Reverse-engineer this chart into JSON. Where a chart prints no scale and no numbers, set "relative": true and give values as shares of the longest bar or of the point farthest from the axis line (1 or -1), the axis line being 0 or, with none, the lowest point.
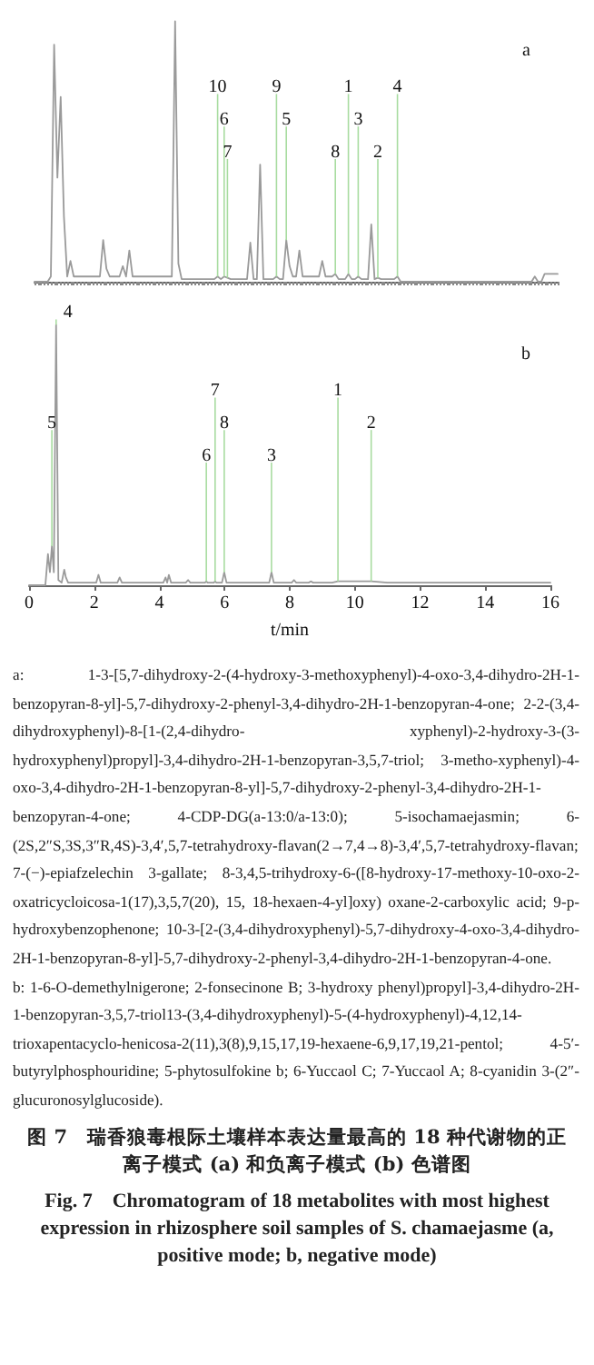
{
  "chart_data": [
    {
      "type": "line",
      "title": "a",
      "relative": true,
      "tick_labels": false,
      "line_style": "solid",
      "categories": [
        null,
        null,
        null,
        null,
        null,
        null,
        null,
        null,
        null,
        null,
        null,
        null,
        null,
        null,
        null,
        null,
        null,
        null,
        null,
        null,
        null,
        null,
        null,
        null,
        null,
        null,
        null,
        null,
        null,
        null,
        null,
        null,
        null,
        null,
        null,
        null,
        null,
        null,
        null,
        null,
        null,
        null,
        null,
        null,
        null,
        null,
        null,
        null,
        null,
        null,
        null,
        null,
        null,
        null,
        null,
        null,
        null,
        null,
        null,
        null,
        null,
        null,
        null,
        null,
        null,
        null,
        null,
        null,
        null,
        null,
        null,
        null,
        null,
        null,
        null,
        null,
        null,
        null,
        null,
        null,
        null,
        null,
        null,
        null,
        null,
        null,
        null,
        null,
        null,
        null,
        null,
        null,
        null,
        null,
        null,
        null,
        null,
        null,
        null,
        null,
        null,
        null,
        null,
        null,
        null,
        null,
        null,
        null,
        null,
        null,
        null,
        null,
        null,
        null,
        null,
        null,
        null,
        null,
        null,
        null,
        null,
        null,
        null,
        null,
        null,
        null,
        null,
        null,
        null,
        null,
        null,
        null,
        null,
        null,
        null,
        null,
        null,
        null,
        null,
        null,
        null,
        null,
        null,
        null,
        null,
        null,
        null,
        null,
        null,
        null,
        null,
        null,
        null,
        null,
        null,
        null,
        null,
        null,
        null,
        null,
        null
      ],
      "series": [
        {
          "color": "#9a9a9a",
          "values": [
            0,
            0,
            0,
            0,
            0,
            0.02,
            0.91,
            0.4,
            0.71,
            0.25,
            0.02,
            0.08,
            0.02,
            0.02,
            0.02,
            0.02,
            0.02,
            0.02,
            0.02,
            0.02,
            0.02,
            0.16,
            0.05,
            0.02,
            0.02,
            0.02,
            0.02,
            0.06,
            0.02,
            0.12,
            0.02,
            0.02,
            0.02,
            0.02,
            0.02,
            0.02,
            0.02,
            0.02,
            0.02,
            0.02,
            0.02,
            0.02,
            0.02,
            1.0,
            0.07,
            0.01,
            0.01,
            0.01,
            0.01,
            0.01,
            0.01,
            0.01,
            0.01,
            0.01,
            0.01,
            0.01,
            0.02,
            0.01,
            0.02,
            0.015,
            0.01,
            0.01,
            0.01,
            0.01,
            0.01,
            0.01,
            0.15,
            0.01,
            0.01,
            0.45,
            0.01,
            0.01,
            0.01,
            0.01,
            0.02,
            0.01,
            0.01,
            0.16,
            0.06,
            0.02,
            0.02,
            0.12,
            0.02,
            0.02,
            0.02,
            0.02,
            0.02,
            0.02,
            0.08,
            0.02,
            0.02,
            0.02,
            0.03,
            0.01,
            0.01,
            0.01,
            0.03,
            0.01,
            0.01,
            0.02,
            0.01,
            0.01,
            0.01,
            0.22,
            0.01,
            0.015,
            0.01,
            0.01,
            0.01,
            0.01,
            0.01,
            0.02,
            0,
            0,
            0,
            0,
            0,
            0,
            0,
            0,
            0,
            0,
            0,
            0,
            0,
            0,
            0,
            0,
            0,
            0,
            0,
            0,
            0,
            0,
            0,
            0,
            0,
            0,
            0,
            0,
            0,
            0,
            0,
            0,
            0,
            0,
            0,
            0,
            0,
            0,
            0,
            0,
            0,
            0.02,
            0,
            0,
            0.03,
            0.03,
            0.03,
            0.03,
            0.03
          ]
        }
      ],
      "annotations": [
        "10",
        "6",
        "7",
        "9",
        "5",
        "8",
        "1",
        "3",
        "2",
        "4"
      ]
    },
    {
      "type": "line",
      "title": "b",
      "relative": true,
      "tick_labels": "x",
      "line_style": "solid",
      "xlabel": "t/min",
      "xlim": [
        0,
        16
      ],
      "xticks": [
        0,
        2,
        4,
        6,
        8,
        10,
        12,
        14,
        16
      ],
      "series": [
        {
          "color": "#9a9a9a",
          "x": [
            0,
            0.5,
            0.58,
            0.64,
            0.7,
            0.76,
            0.83,
            0.9,
            1.0,
            1.08,
            1.13,
            1.2,
            2.06,
            2.13,
            2.2,
            2.71,
            2.78,
            2.85,
            4.12,
            4.19,
            4.24,
            4.29,
            4.36,
            4.81,
            4.88,
            4.95,
            5.4,
            5.44,
            5.48,
            5.67,
            5.71,
            5.75,
            5.92,
            5.99,
            6.06,
            7.37,
            7.44,
            7.51,
            8.06,
            8.13,
            8.2,
            8.58,
            8.65,
            8.72,
            9.3,
            9.48,
            9.6,
            10.5,
            11,
            15.4,
            15.6,
            16
          ],
          "values": [
            0,
            0,
            0.12,
            0.05,
            0.15,
            0.05,
            1.0,
            0.02,
            0.01,
            0.06,
            0.03,
            0.01,
            0.01,
            0.04,
            0.01,
            0.01,
            0.03,
            0.01,
            0.01,
            0.03,
            0.01,
            0.04,
            0.01,
            0.01,
            0.02,
            0.01,
            0.01,
            0.015,
            0.01,
            0.01,
            0.015,
            0.01,
            0.01,
            0.05,
            0.01,
            0.01,
            0.05,
            0.01,
            0.01,
            0.02,
            0.01,
            0.01,
            0.015,
            0.01,
            0.01,
            0.015,
            0.015,
            0.015,
            0.01,
            0.01,
            0.01,
            0.01
          ]
        }
      ],
      "annotations": [
        {
          "text": "4",
          "x": 0.83,
          "y": 1.0
        },
        {
          "text": "5",
          "x": 0.7,
          "y": 0.15
        },
        {
          "text": "6",
          "x": 5.44,
          "y": 0.015
        },
        {
          "text": "7",
          "x": 5.71,
          "y": 0.015
        },
        {
          "text": "8",
          "x": 5.99,
          "y": 0.05
        },
        {
          "text": "3",
          "x": 7.44,
          "y": 0.05
        },
        {
          "text": "1",
          "x": 9.48,
          "y": 0.015
        },
        {
          "text": "2",
          "x": 10.5,
          "y": 0.015
        },
        "a: 1-3-[5,7-dihydroxy-2-(4-hydroxy-3-methoxyphenyl)-4-oxo-3,4-dihydro-2H-1-benzopyran-8-yl]-5,7-dihydroxy-2-phenyl-3,4-dihydro-2H-1-benzopyran-4-one; 2-2-(3,4-dihydroxyphenyl)-8-[1-(2,4-dihydro- xyphenyl)-2-hydroxy-3-(3-hydroxyphenyl)propyl]-3,4-dihydro-2H-1-benzopyran-3,5,7-triol; 3-metho-xyphenyl)-4-oxo-3,4-dihydro-2H-1-benzopyran-8-yl]-5,7-dihydroxy-2-phenyl-3,4-dihydro-2H-1-benzopyran-4-one; 4-CDP-DG(a-13:0/a-13:0); 5-isochamaejasmin; 6-(2S,2″S,3S,3″R,4S)-3,4′,5,7-tetrahydroxy-flavan(2→7,4→8)-3,4′,5,7-tetrahydroxy-flavan; 7-(−)-epiafzelechin 3-gallate; 8-3,4,5-trihydroxy-6-([8-hydroxy-17-methoxy-10-oxo-2-oxatricycloicosa-1(17),3,5,7(20), 15, 18-hexaen-4-yl]oxy) oxane-2-carboxylic acid; 9-p-hydroxybenzophenone; 10-3-[2-(3,4-dihydroxyphenyl)-5,7-dihydroxy-4-oxo-3,4-dihydro-2H-1-benzopyran-8-yl]-5,7-dihydroxy-2-phenyl-3,4-dihydro-2H-1-benzopyran-4-one.",
        "b: 1-6-O-demethylnigerone; 2-fonsecinone B; 3-hydroxy phenyl)propyl]-3,4-dihydro-2H-1-benzopyran-3,5,7-triol13-(3,4-dihydroxyphenyl)-5-(4-hydroxyphenyl)-4,12,14-trioxapentacyclo-henicosa-2(11),3(8),9,15,17,19-hexaene-6,9,17,19,21-pentol; 4-5′-butyrylphosphouridine; 5-phytosulfokine b; 6-Yuccaol C; 7-Yuccaol A; 8-cyanidin 3-(2″-glucuronosylglucoside).",
        "图 7　瑞香狼毒根际土壤样本表达量最高的 18 种代谢物的正离子模式 (a) 和负离子模式 (b) 色谱图",
        "Fig. 7　Chromatogram of 18 metabolites with most highest expression in rhizosphere soil samples of S. chamaejasme (a, positive mode; b, negative mode)"
      ]
    }
  ]
}
